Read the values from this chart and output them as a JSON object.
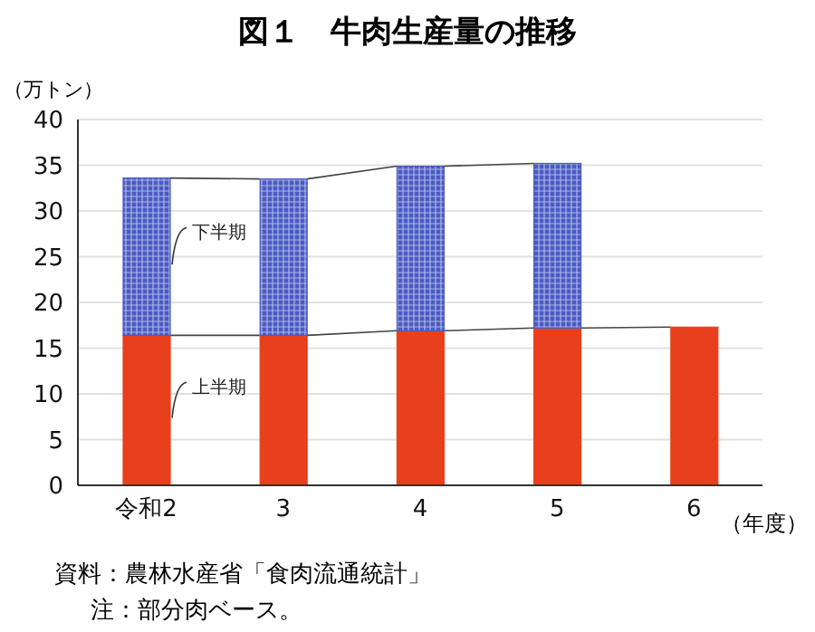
{
  "chart_data": {
    "type": "bar",
    "title": "図１　牛肉生産量の推移",
    "ylabel": "（万トン）",
    "xlabel": "（年度）",
    "categories": [
      "令和2",
      "3",
      "4",
      "5",
      "6"
    ],
    "series": [
      {
        "name": "上半期",
        "color": "#e8401c",
        "values": [
          16.4,
          16.4,
          16.9,
          17.2,
          17.3
        ]
      },
      {
        "name": "下半期",
        "color": "#4a5bc4",
        "values": [
          17.2,
          17.1,
          18.0,
          18.0,
          null
        ]
      }
    ],
    "stacked": true,
    "ylim": [
      0,
      40
    ],
    "yticks": [
      0,
      5,
      10,
      15,
      20,
      25,
      30,
      35,
      40
    ],
    "grid": "y",
    "legend": "left",
    "annotations": [
      "資料：農林水産省「食肉流通統計」",
      "注：部分肉ベース。"
    ]
  }
}
